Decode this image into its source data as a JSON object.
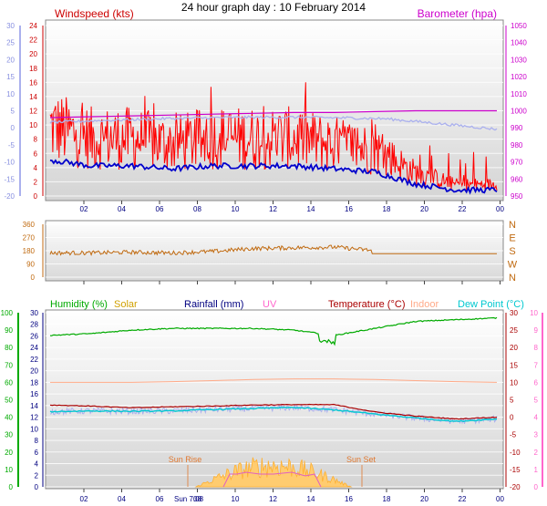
{
  "title": "24 hour graph day : 10 February 2014",
  "x_ticks": [
    "02",
    "04",
    "06",
    "08",
    "10",
    "12",
    "14",
    "16",
    "18",
    "20",
    "22",
    "00"
  ],
  "panel1": {
    "label_windspeed": "Windspeed (kts)",
    "label_barometer": "Barometer (hpa)",
    "windspeed_ticks": [
      "0",
      "2",
      "4",
      "6",
      "8",
      "10",
      "12",
      "14",
      "16",
      "18",
      "20",
      "22",
      "24"
    ],
    "temp_ticks": [
      "-20",
      "-15",
      "-10",
      "-5",
      "0",
      "5",
      "10",
      "15",
      "20",
      "25",
      "30"
    ],
    "baro_ticks": [
      "950",
      "960",
      "970",
      "980",
      "990",
      "1000",
      "1010",
      "1020",
      "1030",
      "1040",
      "1050"
    ]
  },
  "panel2": {
    "dir_ticks": [
      "0",
      "90",
      "180",
      "270",
      "360"
    ],
    "compass": [
      "N",
      "W",
      "S",
      "E",
      "N"
    ]
  },
  "panel3": {
    "labels": {
      "humidity": "Humidity (%)",
      "solar": "Solar",
      "rainfall": "Rainfall (mm)",
      "uv": "UV",
      "temperature": "Temperature (°C)",
      "indoor": "Indoor",
      "dewpoint": "Dew Point (°C)"
    },
    "humidity_ticks": [
      "0",
      "10",
      "20",
      "30",
      "40",
      "50",
      "60",
      "70",
      "80",
      "90",
      "100"
    ],
    "rain_ticks": [
      "0",
      "2",
      "4",
      "6",
      "8",
      "10",
      "12",
      "14",
      "16",
      "18",
      "20",
      "22",
      "24",
      "26",
      "28",
      "30"
    ],
    "temp_ticks": [
      "-20",
      "-15",
      "-10",
      "-5",
      "0",
      "5",
      "10",
      "15",
      "20",
      "25",
      "30"
    ],
    "uv_ticks": [
      "0",
      "1",
      "2",
      "3",
      "4",
      "5",
      "6",
      "7",
      "8",
      "9",
      "10"
    ],
    "sun_rise": "Sun Rise",
    "sun_set": "Sun Set",
    "sun_rise_time": "Sun 7:08"
  },
  "colors": {
    "windspeed": "#cc0000",
    "gust": "#ff0000",
    "avgwind": "#0000cc",
    "baro": "#cc00cc",
    "temp_light": "#aab0ee",
    "direction": "#c06a10",
    "humidity": "#00aa00",
    "solar": "#ffb030",
    "rain": "#000080",
    "uv": "#ff66cc",
    "temperature": "#aa0000",
    "indoor": "#ffaa88",
    "dewpoint": "#00c8d0"
  },
  "chart_data": [
    {
      "type": "line",
      "title": "24 hour graph day : 10 February 2014",
      "x": [
        "02",
        "04",
        "06",
        "08",
        "10",
        "12",
        "14",
        "16",
        "18",
        "20",
        "22",
        "00"
      ],
      "series": [
        {
          "name": "Windspeed (kts)",
          "values": [
            6,
            5,
            5,
            4.5,
            5,
            5,
            5,
            4.5,
            4,
            2,
            1,
            1
          ]
        },
        {
          "name": "Barometer (hpa)",
          "values": [
            996,
            996.5,
            997,
            997.5,
            998,
            998.5,
            999,
            999,
            999.5,
            1000,
            1000,
            1000
          ]
        }
      ],
      "ylim_left": [
        0,
        24
      ],
      "ylim_right": [
        950,
        1050
      ]
    },
    {
      "type": "line",
      "x": [
        "02",
        "04",
        "06",
        "08",
        "10",
        "12",
        "14",
        "16",
        "18",
        "20",
        "22",
        "00"
      ],
      "series": [
        {
          "name": "Wind direction",
          "values": [
            165,
            165,
            170,
            165,
            175,
            195,
            200,
            205,
            180,
            165,
            160,
            160
          ]
        }
      ],
      "ylim": [
        0,
        360
      ]
    },
    {
      "type": "line",
      "x": [
        "02",
        "04",
        "06",
        "08",
        "10",
        "12",
        "14",
        "16",
        "18",
        "20",
        "22",
        "00"
      ],
      "series": [
        {
          "name": "Humidity (%)",
          "values": [
            87,
            88,
            90,
            91,
            91,
            91,
            90,
            87,
            91,
            95,
            96,
            97
          ]
        },
        {
          "name": "Temperature (°C)",
          "values": [
            3.5,
            3.2,
            2.7,
            3,
            3.2,
            3.5,
            3.6,
            3.6,
            1.5,
            0.3,
            -0.5,
            0
          ]
        },
        {
          "name": "Dew Point (°C)",
          "values": [
            1.6,
            1.8,
            1.7,
            1.8,
            2.2,
            2.5,
            2.8,
            2.1,
            0.9,
            -0.2,
            -1.2,
            -0.5
          ]
        },
        {
          "name": "Indoor",
          "values": [
            10,
            10,
            10,
            10.2,
            10.5,
            10.8,
            11,
            11,
            10.8,
            10.5,
            10.2,
            10
          ]
        }
      ],
      "ylim_left": [
        0,
        100
      ],
      "ylim_right": [
        -20,
        30
      ]
    }
  ]
}
